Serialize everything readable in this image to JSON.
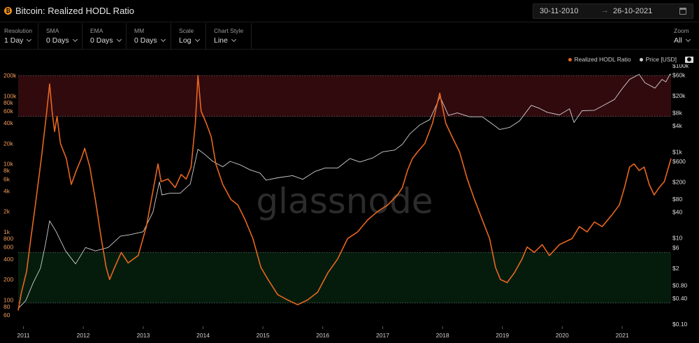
{
  "header": {
    "brand_icon": "bitcoin-icon",
    "title": "Bitcoin: Realized HODL Ratio",
    "date_start": "30-11-2010",
    "date_arrow": "→",
    "date_end": "26-10-2021",
    "calendar_icon": "calendar-icon"
  },
  "controls": [
    {
      "label": "Resolution",
      "value": "1 Day"
    },
    {
      "label": "SMA",
      "value": "0 Days"
    },
    {
      "label": "EMA",
      "value": "0 Days"
    },
    {
      "label": "MM",
      "value": "0 Days"
    },
    {
      "label": "Scale",
      "value": "Log"
    },
    {
      "label": "Chart Style",
      "value": "Line"
    }
  ],
  "zoom": {
    "label": "Zoom",
    "value": "All"
  },
  "legend": {
    "ratio": "Realized HODL Ratio",
    "price": "Price [USD]",
    "camera_icon": "camera-icon"
  },
  "colors": {
    "ratio": "#e8661f",
    "price": "#cfcfcf",
    "top_band": "#3a0c10",
    "bottom_band": "#06210f"
  },
  "watermark": "glassnode",
  "chart_data": {
    "type": "line",
    "scale": "log",
    "legend_position": "top-right",
    "grid": false,
    "left_axis": {
      "series": "Realized HODL Ratio",
      "range": [
        52,
        210000
      ],
      "ticks": [
        {
          "v": 200000,
          "label": "200k"
        },
        {
          "v": 100000,
          "label": "100k"
        },
        {
          "v": 80000,
          "label": "80k"
        },
        {
          "v": 60000,
          "label": "60k"
        },
        {
          "v": 40000,
          "label": "40k"
        },
        {
          "v": 20000,
          "label": "20k"
        },
        {
          "v": 10000,
          "label": "10k"
        },
        {
          "v": 8000,
          "label": "8k"
        },
        {
          "v": 6000,
          "label": "6k"
        },
        {
          "v": 4000,
          "label": "4k"
        },
        {
          "v": 2000,
          "label": "2k"
        },
        {
          "v": 1000,
          "label": "1k"
        },
        {
          "v": 800,
          "label": "800"
        },
        {
          "v": 600,
          "label": "600"
        },
        {
          "v": 400,
          "label": "400"
        },
        {
          "v": 200,
          "label": "200"
        },
        {
          "v": 100,
          "label": "100"
        },
        {
          "v": 80,
          "label": "80"
        },
        {
          "v": 60,
          "label": "60"
        }
      ]
    },
    "right_axis": {
      "series": "Price [USD]",
      "range": [
        0.1,
        100000
      ],
      "ticks": [
        {
          "v": 100000,
          "label": "$100k"
        },
        {
          "v": 60000,
          "label": "$60k"
        },
        {
          "v": 20000,
          "label": "$20k"
        },
        {
          "v": 8000,
          "label": "$8k"
        },
        {
          "v": 4000,
          "label": "$4k"
        },
        {
          "v": 1000,
          "label": "$1k"
        },
        {
          "v": 600,
          "label": "$600"
        },
        {
          "v": 200,
          "label": "$200"
        },
        {
          "v": 80,
          "label": "$80"
        },
        {
          "v": 40,
          "label": "$40"
        },
        {
          "v": 10,
          "label": "$10"
        },
        {
          "v": 6,
          "label": "$6"
        },
        {
          "v": 2,
          "label": "$2"
        },
        {
          "v": 0.8,
          "label": "$0.80"
        },
        {
          "v": 0.4,
          "label": "$0.40"
        },
        {
          "v": 0.1,
          "label": "$0.10"
        }
      ]
    },
    "x_axis": {
      "range": [
        "2010-11-30",
        "2021-10-26"
      ],
      "ticks": [
        "2011",
        "2012",
        "2013",
        "2014",
        "2015",
        "2016",
        "2017",
        "2018",
        "2019",
        "2020",
        "2021"
      ]
    },
    "bands": [
      {
        "name": "top",
        "from": 50000,
        "to": 200000
      },
      {
        "name": "bottom",
        "from": 90,
        "to": 500
      }
    ],
    "series": [
      {
        "name": "Realized HODL Ratio",
        "axis": "left",
        "points": [
          [
            "2010-11-30",
            70
          ],
          [
            "2010-12-20",
            130
          ],
          [
            "2011-01-20",
            260
          ],
          [
            "2011-02-15",
            800
          ],
          [
            "2011-03-15",
            2500
          ],
          [
            "2011-04-20",
            12000
          ],
          [
            "2011-05-20",
            50000
          ],
          [
            "2011-06-10",
            150000
          ],
          [
            "2011-06-25",
            60000
          ],
          [
            "2011-07-10",
            30000
          ],
          [
            "2011-07-25",
            50000
          ],
          [
            "2011-08-15",
            20000
          ],
          [
            "2011-09-20",
            12000
          ],
          [
            "2011-10-20",
            5000
          ],
          [
            "2011-11-20",
            8000
          ],
          [
            "2011-12-20",
            12000
          ],
          [
            "2012-01-10",
            17000
          ],
          [
            "2012-02-10",
            9000
          ],
          [
            "2012-03-15",
            3000
          ],
          [
            "2012-04-20",
            800
          ],
          [
            "2012-05-20",
            300
          ],
          [
            "2012-06-10",
            200
          ],
          [
            "2012-07-10",
            300
          ],
          [
            "2012-08-20",
            500
          ],
          [
            "2012-10-01",
            350
          ],
          [
            "2012-12-01",
            450
          ],
          [
            "2013-01-20",
            1200
          ],
          [
            "2013-03-01",
            4000
          ],
          [
            "2013-04-01",
            10000
          ],
          [
            "2013-04-20",
            5500
          ],
          [
            "2013-06-01",
            6000
          ],
          [
            "2013-07-15",
            4500
          ],
          [
            "2013-08-20",
            7000
          ],
          [
            "2013-09-20",
            6000
          ],
          [
            "2013-10-20",
            9000
          ],
          [
            "2013-11-15",
            40000
          ],
          [
            "2013-12-01",
            200000
          ],
          [
            "2013-12-20",
            60000
          ],
          [
            "2014-01-20",
            40000
          ],
          [
            "2014-02-20",
            25000
          ],
          [
            "2014-03-20",
            10000
          ],
          [
            "2014-05-01",
            5000
          ],
          [
            "2014-06-20",
            3000
          ],
          [
            "2014-08-01",
            2500
          ],
          [
            "2014-09-15",
            1500
          ],
          [
            "2014-11-01",
            800
          ],
          [
            "2014-12-20",
            300
          ],
          [
            "2015-02-01",
            200
          ],
          [
            "2015-04-01",
            120
          ],
          [
            "2015-06-01",
            100
          ],
          [
            "2015-08-01",
            85
          ],
          [
            "2015-10-01",
            100
          ],
          [
            "2015-12-01",
            130
          ],
          [
            "2016-02-01",
            250
          ],
          [
            "2016-04-01",
            400
          ],
          [
            "2016-06-01",
            800
          ],
          [
            "2016-08-01",
            1000
          ],
          [
            "2016-10-01",
            1500
          ],
          [
            "2016-12-01",
            2000
          ],
          [
            "2017-02-01",
            2500
          ],
          [
            "2017-04-01",
            3500
          ],
          [
            "2017-05-01",
            4500
          ],
          [
            "2017-06-01",
            8000
          ],
          [
            "2017-07-01",
            12000
          ],
          [
            "2017-08-01",
            15000
          ],
          [
            "2017-09-15",
            20000
          ],
          [
            "2017-11-01",
            40000
          ],
          [
            "2017-12-15",
            110000
          ],
          [
            "2018-01-20",
            40000
          ],
          [
            "2018-03-01",
            25000
          ],
          [
            "2018-04-15",
            15000
          ],
          [
            "2018-06-01",
            6000
          ],
          [
            "2018-07-15",
            3000
          ],
          [
            "2018-09-01",
            1500
          ],
          [
            "2018-10-15",
            800
          ],
          [
            "2018-11-20",
            300
          ],
          [
            "2018-12-20",
            200
          ],
          [
            "2019-01-30",
            180
          ],
          [
            "2019-03-15",
            250
          ],
          [
            "2019-05-01",
            400
          ],
          [
            "2019-06-01",
            600
          ],
          [
            "2019-07-15",
            500
          ],
          [
            "2019-09-01",
            650
          ],
          [
            "2019-10-15",
            450
          ],
          [
            "2019-12-15",
            650
          ],
          [
            "2020-03-01",
            800
          ],
          [
            "2020-04-15",
            1200
          ],
          [
            "2020-06-01",
            1000
          ],
          [
            "2020-07-15",
            1400
          ],
          [
            "2020-09-01",
            1200
          ],
          [
            "2020-11-01",
            1800
          ],
          [
            "2020-12-15",
            2500
          ],
          [
            "2021-01-15",
            4500
          ],
          [
            "2021-02-15",
            9000
          ],
          [
            "2021-03-15",
            10000
          ],
          [
            "2021-04-15",
            8000
          ],
          [
            "2021-05-15",
            9000
          ],
          [
            "2021-06-15",
            5000
          ],
          [
            "2021-07-15",
            3500
          ],
          [
            "2021-08-15",
            4500
          ],
          [
            "2021-09-15",
            5500
          ],
          [
            "2021-10-26",
            12000
          ]
        ]
      },
      {
        "name": "Price [USD]",
        "axis": "right",
        "points": [
          [
            "2010-11-30",
            0.23
          ],
          [
            "2011-01-15",
            0.35
          ],
          [
            "2011-03-01",
            0.9
          ],
          [
            "2011-04-15",
            2
          ],
          [
            "2011-05-15",
            7
          ],
          [
            "2011-06-10",
            25
          ],
          [
            "2011-07-20",
            14
          ],
          [
            "2011-09-15",
            5
          ],
          [
            "2011-11-15",
            2.5
          ],
          [
            "2012-01-15",
            6
          ],
          [
            "2012-03-15",
            5
          ],
          [
            "2012-06-01",
            6
          ],
          [
            "2012-08-15",
            11
          ],
          [
            "2012-10-15",
            12
          ],
          [
            "2013-01-01",
            14
          ],
          [
            "2013-03-01",
            40
          ],
          [
            "2013-04-10",
            200
          ],
          [
            "2013-04-25",
            100
          ],
          [
            "2013-06-15",
            110
          ],
          [
            "2013-08-15",
            110
          ],
          [
            "2013-10-15",
            180
          ],
          [
            "2013-12-01",
            1150
          ],
          [
            "2014-01-15",
            850
          ],
          [
            "2014-03-01",
            600
          ],
          [
            "2014-05-01",
            450
          ],
          [
            "2014-06-15",
            600
          ],
          [
            "2014-08-15",
            500
          ],
          [
            "2014-10-15",
            380
          ],
          [
            "2014-12-15",
            320
          ],
          [
            "2015-01-20",
            220
          ],
          [
            "2015-04-01",
            250
          ],
          [
            "2015-07-01",
            280
          ],
          [
            "2015-09-01",
            230
          ],
          [
            "2015-11-15",
            350
          ],
          [
            "2016-01-15",
            420
          ],
          [
            "2016-04-01",
            420
          ],
          [
            "2016-06-15",
            700
          ],
          [
            "2016-08-15",
            580
          ],
          [
            "2016-11-01",
            720
          ],
          [
            "2017-01-01",
            1000
          ],
          [
            "2017-03-15",
            1100
          ],
          [
            "2017-05-01",
            1500
          ],
          [
            "2017-06-15",
            2600
          ],
          [
            "2017-08-15",
            4200
          ],
          [
            "2017-10-15",
            5600
          ],
          [
            "2017-12-17",
            19000
          ],
          [
            "2018-02-06",
            7000
          ],
          [
            "2018-04-01",
            8000
          ],
          [
            "2018-06-15",
            6500
          ],
          [
            "2018-09-01",
            6500
          ],
          [
            "2018-11-25",
            3800
          ],
          [
            "2018-12-15",
            3300
          ],
          [
            "2019-02-15",
            3700
          ],
          [
            "2019-04-15",
            5200
          ],
          [
            "2019-06-26",
            12000
          ],
          [
            "2019-08-15",
            10200
          ],
          [
            "2019-10-01",
            8300
          ],
          [
            "2019-12-15",
            7200
          ],
          [
            "2020-02-15",
            10000
          ],
          [
            "2020-03-13",
            4800
          ],
          [
            "2020-05-01",
            9000
          ],
          [
            "2020-07-15",
            9200
          ],
          [
            "2020-09-01",
            11500
          ],
          [
            "2020-11-15",
            16500
          ],
          [
            "2020-12-31",
            29000
          ],
          [
            "2021-02-15",
            48000
          ],
          [
            "2021-04-14",
            63000
          ],
          [
            "2021-05-20",
            40000
          ],
          [
            "2021-07-20",
            30000
          ],
          [
            "2021-09-01",
            48000
          ],
          [
            "2021-09-25",
            42000
          ],
          [
            "2021-10-20",
            64000
          ],
          [
            "2021-10-26",
            60000
          ]
        ]
      }
    ]
  }
}
